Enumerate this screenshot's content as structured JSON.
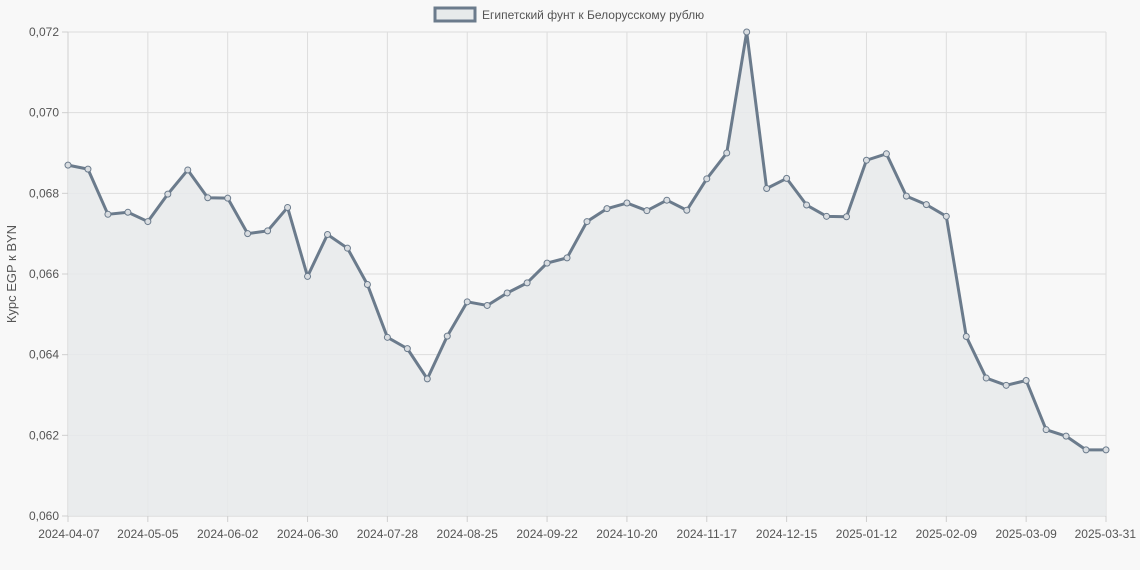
{
  "chart_data": {
    "type": "line",
    "legend_label": "Египетский фунт к Белорусскому рублю",
    "legend_position": "top-center",
    "ylabel": "Курс EGP к BYN",
    "ylim": [
      0.06,
      0.072
    ],
    "y_ticks": [
      "0,060",
      "0,062",
      "0,064",
      "0,066",
      "0,068",
      "0,070",
      "0,072"
    ],
    "y_tick_values": [
      0.06,
      0.062,
      0.064,
      0.066,
      0.068,
      0.07,
      0.072
    ],
    "x_tick_labels": [
      "2024-04-07",
      "2024-05-05",
      "2024-06-02",
      "2024-06-30",
      "2024-07-28",
      "2024-08-25",
      "2024-09-22",
      "2024-10-20",
      "2024-11-17",
      "2024-12-15",
      "2025-01-12",
      "2025-02-09",
      "2025-03-09",
      "2025-03-31"
    ],
    "x_tick_indices": [
      0,
      4,
      8,
      12,
      16,
      20,
      24,
      28,
      32,
      36,
      40,
      44,
      48,
      52
    ],
    "grid": true,
    "values": [
      0.0687,
      0.0686,
      0.06748,
      0.06753,
      0.0673,
      0.06798,
      0.06858,
      0.06789,
      0.06788,
      0.067,
      0.06707,
      0.06765,
      0.06594,
      0.06698,
      0.06664,
      0.06574,
      0.06443,
      0.06415,
      0.0634,
      0.06446,
      0.06531,
      0.06522,
      0.06553,
      0.06578,
      0.06627,
      0.0664,
      0.0673,
      0.06762,
      0.06776,
      0.06757,
      0.06783,
      0.06758,
      0.06836,
      0.069,
      0.072,
      0.06812,
      0.06837,
      0.06771,
      0.06743,
      0.06742,
      0.06882,
      0.06898,
      0.06793,
      0.06772,
      0.06743,
      0.06445,
      0.06342,
      0.06324,
      0.06336,
      0.06214,
      0.06198,
      0.06164,
      0.06164
    ],
    "colors": {
      "line": "#6b7b8c",
      "fill": "#e7eaeb",
      "grid": "#dddddd",
      "axis": "#cfcfcf",
      "point_fill": "#d9dde1"
    }
  }
}
